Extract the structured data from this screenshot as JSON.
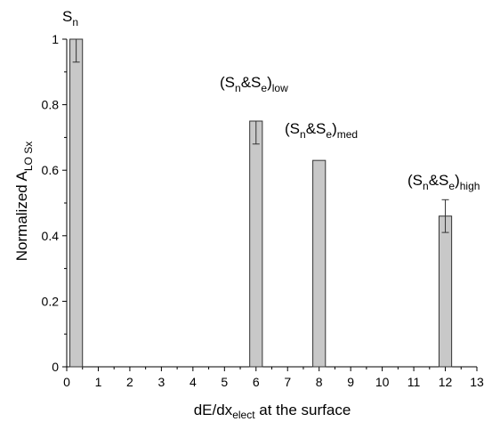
{
  "chart_data": {
    "type": "bar",
    "xlabel": {
      "main": "dE/dx",
      "sub": "elect",
      "rest": " at the surface"
    },
    "ylabel": {
      "main": "Normalized A",
      "sub": "LO Sx"
    },
    "xlim": [
      0,
      13
    ],
    "ylim": [
      0,
      1.0
    ],
    "xticks": [
      "0",
      "1",
      "2",
      "3",
      "4",
      "5",
      "6",
      "7",
      "8",
      "9",
      "10",
      "11",
      "12",
      "13"
    ],
    "yticks": [
      "0",
      "0.2",
      "0.4",
      "0.6",
      "0.8",
      "1"
    ],
    "bar_color": "#c8c8c8",
    "bar_width": 0.4,
    "grid": false,
    "bars": [
      {
        "x": 0.3,
        "value": 1.0,
        "err_low": 0.07,
        "err_high": 0.0
      },
      {
        "x": 6.0,
        "value": 0.75,
        "err_low": 0.07,
        "err_high": 0.0
      },
      {
        "x": 8.0,
        "value": 0.63,
        "err_low": 0.0,
        "err_high": 0.0
      },
      {
        "x": 12.0,
        "value": 0.46,
        "err_low": 0.05,
        "err_high": 0.05
      }
    ],
    "annotations": [
      {
        "anchor_bar": 0,
        "parts": [
          [
            "S",
            ""
          ],
          [
            "n",
            "sub"
          ]
        ]
      },
      {
        "anchor_bar": 1,
        "parts": [
          [
            "(S",
            ""
          ],
          [
            "n",
            "sub"
          ],
          [
            "&S",
            ""
          ],
          [
            "e",
            "sub"
          ],
          [
            ")",
            ""
          ],
          [
            "low",
            "sub"
          ]
        ]
      },
      {
        "anchor_bar": 2,
        "parts": [
          [
            "(S",
            ""
          ],
          [
            "n",
            "sub"
          ],
          [
            "&S",
            ""
          ],
          [
            "e",
            "sub"
          ],
          [
            ")",
            ""
          ],
          [
            "med",
            "sub"
          ]
        ]
      },
      {
        "anchor_bar": 3,
        "parts": [
          [
            "(S",
            ""
          ],
          [
            "n",
            "sub"
          ],
          [
            "&S",
            ""
          ],
          [
            "e",
            "sub"
          ],
          [
            ")",
            ""
          ],
          [
            "high",
            "sub"
          ]
        ]
      }
    ]
  }
}
